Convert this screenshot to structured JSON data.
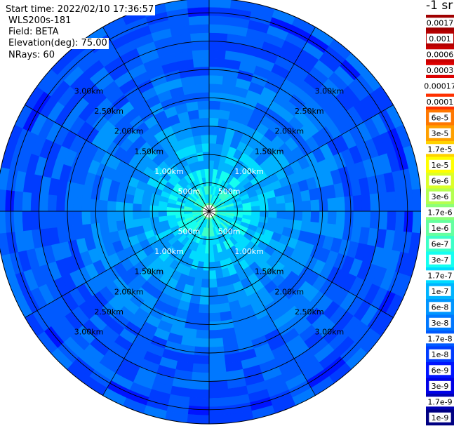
{
  "header": {
    "start_time": "Start time: 2022/02/10 17:36:57",
    "instrument": "WLS200s-181",
    "field": "Field: BETA",
    "elevation": "Elevation(deg): 75.00",
    "nrays": "NRays: 60"
  },
  "colorbar": {
    "units": "-1 sr",
    "levels": [
      {
        "label": "0.0017",
        "color": "#a00000"
      },
      {
        "label": "0.001",
        "color": "#b40000"
      },
      {
        "label": "0.0006",
        "color": "#c80000"
      },
      {
        "label": "0.0003",
        "color": "#dc0000"
      },
      {
        "label": "0.00017",
        "color": "#ffffff"
      },
      {
        "label": "0.0001",
        "color": "#ff3000"
      },
      {
        "label": "6e-5",
        "color": "#ff7800"
      },
      {
        "label": "3e-5",
        "color": "#ffa000"
      },
      {
        "label": "1.7e-5",
        "color": "#ffd200"
      },
      {
        "label": "1e-5",
        "color": "#ffff00"
      },
      {
        "label": "6e-6",
        "color": "#dcff28"
      },
      {
        "label": "3e-6",
        "color": "#b4ff50"
      },
      {
        "label": "1.7e-6",
        "color": "#8cff78"
      },
      {
        "label": "1e-6",
        "color": "#64ffa0"
      },
      {
        "label": "6e-7",
        "color": "#3cffc8"
      },
      {
        "label": "3e-7",
        "color": "#14fff0"
      },
      {
        "label": "1.7e-7",
        "color": "#00dcff"
      },
      {
        "label": "1e-7",
        "color": "#00b4ff"
      },
      {
        "label": "6e-8",
        "color": "#0096ff"
      },
      {
        "label": "3e-8",
        "color": "#0078ff"
      },
      {
        "label": "1.7e-8",
        "color": "#005aff"
      },
      {
        "label": "1e-8",
        "color": "#003cff"
      },
      {
        "label": "6e-9",
        "color": "#0014ff"
      },
      {
        "label": "3e-9",
        "color": "#0000e6"
      },
      {
        "label": "1.7e-9",
        "color": "#0000b4"
      },
      {
        "label": "1e-9",
        "color": "#000082"
      }
    ]
  },
  "chart_data": {
    "type": "heatmap",
    "projection": "polar-ppi",
    "field": "BETA",
    "units": "-1 sr",
    "n_rays": 60,
    "elevation_deg": 75.0,
    "range_max_km": 3.75,
    "range_rings_km": [
      0.5,
      1.0,
      1.5,
      2.0,
      2.5,
      3.0,
      3.5
    ],
    "range_ring_labels": [
      "500m",
      "1.00km",
      "1.50km",
      "2.00km",
      "2.50km",
      "3.00km"
    ],
    "spokes_deg": [
      0,
      30,
      60,
      90,
      120,
      150,
      180,
      210,
      240,
      270,
      300,
      330
    ],
    "range_bins_km": [
      0.15,
      0.3,
      0.45,
      0.6,
      0.75,
      0.9,
      1.05,
      1.2,
      1.35,
      1.5,
      1.65,
      1.8,
      1.95,
      2.1,
      2.25,
      2.4,
      2.55,
      2.7,
      2.85,
      3.0,
      3.15,
      3.3,
      3.45,
      3.6,
      3.75
    ],
    "radial_profile_level_index": [
      13,
      15,
      15,
      16,
      16,
      17,
      17,
      17,
      18,
      18,
      18,
      19,
      19,
      19,
      19,
      19,
      20,
      20,
      20,
      20,
      20,
      20,
      20,
      21,
      20
    ],
    "level_jitter": [
      -1,
      0,
      1
    ],
    "grid": true,
    "legend": "right"
  }
}
